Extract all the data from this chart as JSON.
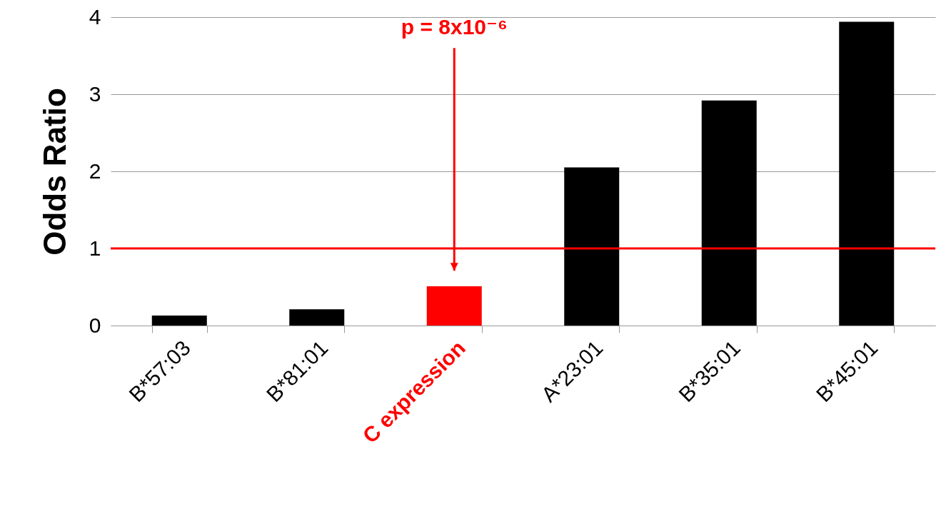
{
  "chart_data": {
    "type": "bar",
    "ylabel": "Odds Ratio",
    "categories": [
      "B*57:03",
      "B*81:01",
      "C expression",
      "A*23:01",
      "B*35:01",
      "B*45:01"
    ],
    "values": [
      0.13,
      0.21,
      0.51,
      2.05,
      2.92,
      3.94
    ],
    "colors": [
      "#000000",
      "#000000",
      "#ff0000",
      "#000000",
      "#000000",
      "#000000"
    ],
    "ylim": [
      0,
      4
    ],
    "yticks": [
      0,
      1,
      2,
      3,
      4
    ],
    "grid": "y",
    "ref_lines": [
      {
        "axis": "y",
        "value": 1,
        "color": "#ff0000"
      }
    ],
    "annotations": [
      "p = 8x10⁻⁶"
    ]
  }
}
